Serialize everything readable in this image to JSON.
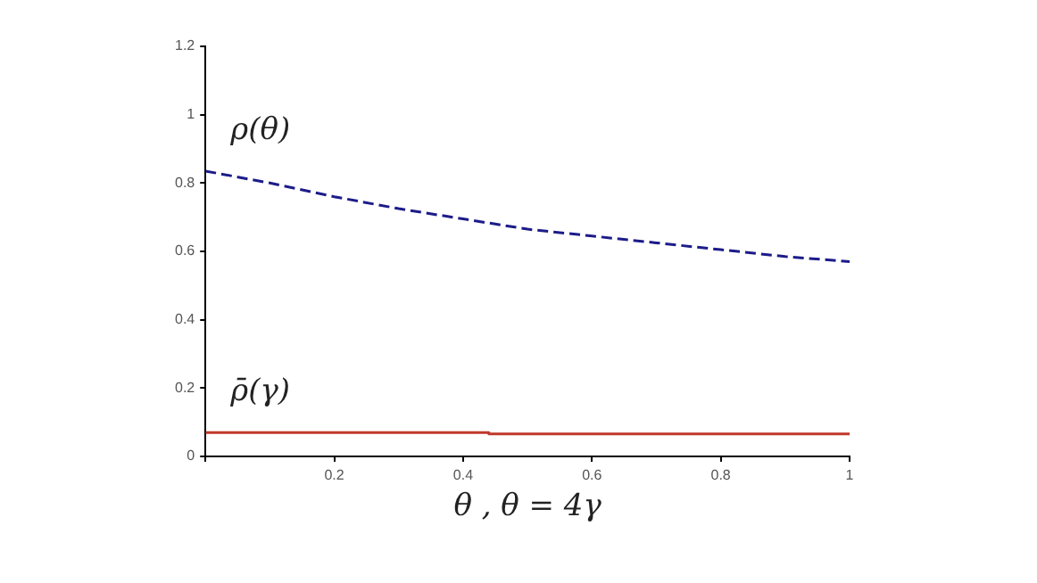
{
  "chart_data": {
    "type": "line",
    "xlabel": "θ , θ = 4γ",
    "xlim": [
      0,
      1
    ],
    "xticks": [
      {
        "value": 0,
        "label": null
      },
      0.2,
      0.4,
      0.6,
      0.8,
      1
    ],
    "ylim": [
      0,
      1.2
    ],
    "yticks": [
      0,
      0.2,
      0.4,
      0.6,
      0.8,
      1,
      1.2
    ],
    "grid": false,
    "legend": false,
    "marker": "none",
    "series": [
      {
        "name": "ρ(θ)",
        "color": "#1c1c8a",
        "line_style": "dashed",
        "x": [
          0,
          0.1,
          0.2,
          0.3,
          0.4,
          0.5,
          0.6,
          0.7,
          0.8,
          0.9,
          1
        ],
        "values": [
          0.835,
          0.8,
          0.76,
          0.725,
          0.695,
          0.665,
          0.645,
          0.625,
          0.605,
          0.585,
          0.57
        ]
      },
      {
        "name": "ρ̄(γ)",
        "color": "#c0392b",
        "line_style": "solid",
        "x": [
          0,
          0.44,
          0.44,
          1
        ],
        "values": [
          0.07,
          0.07,
          0.066,
          0.066
        ]
      }
    ]
  }
}
